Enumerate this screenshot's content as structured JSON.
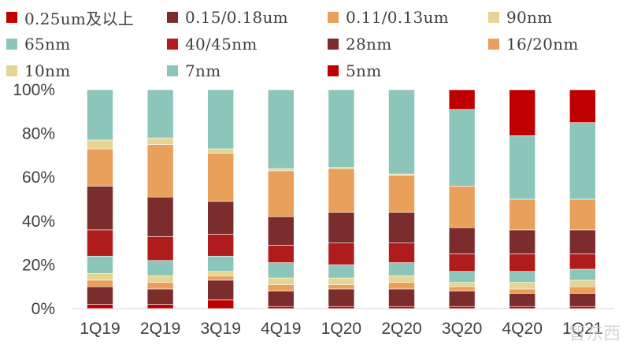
{
  "chart_data": {
    "type": "bar",
    "stacked": true,
    "categories": [
      "1Q19",
      "2Q19",
      "3Q19",
      "4Q19",
      "1Q20",
      "2Q20",
      "3Q20",
      "4Q20",
      "1Q21"
    ],
    "ylim": [
      0,
      100
    ],
    "yticks": [
      "0%",
      "20%",
      "40%",
      "60%",
      "80%",
      "100%"
    ],
    "ytick_values": [
      0,
      20,
      40,
      60,
      80,
      100
    ],
    "legend_position": "top",
    "series": [
      {
        "name": "0.25um及以上",
        "color": "#C00000",
        "values": [
          2,
          2,
          4,
          1,
          1,
          1,
          1,
          1,
          1
        ]
      },
      {
        "name": "0.15/0.18um",
        "color": "#7B2C2C",
        "values": [
          8,
          7,
          9,
          7,
          8,
          8,
          7,
          6,
          6
        ]
      },
      {
        "name": "0.11/0.13um",
        "color": "#E8A05A",
        "values": [
          3,
          3,
          2,
          3,
          2,
          3,
          2,
          2,
          3
        ]
      },
      {
        "name": "90nm",
        "color": "#E6D591",
        "values": [
          3,
          3,
          2,
          3,
          3,
          3,
          2,
          3,
          3
        ]
      },
      {
        "name": "65nm",
        "color": "#8CC5B9",
        "values": [
          8,
          7,
          7,
          7,
          6,
          6,
          5,
          5,
          5
        ]
      },
      {
        "name": "40/45nm",
        "color": "#B01C1C",
        "values": [
          12,
          11,
          10,
          8,
          10,
          9,
          8,
          8,
          7
        ]
      },
      {
        "name": "28nm",
        "color": "#7B2C2C",
        "values": [
          20,
          18,
          15,
          13,
          14,
          14,
          12,
          11,
          11
        ]
      },
      {
        "name": "16/20nm",
        "color": "#E8A05A",
        "values": [
          17,
          24,
          22,
          21,
          20,
          17,
          19,
          14,
          14
        ]
      },
      {
        "name": "10nm",
        "color": "#E6D591",
        "values": [
          4,
          3,
          2,
          1,
          0.5,
          0.5,
          0,
          0,
          0
        ]
      },
      {
        "name": "7nm",
        "color": "#8CC5B9",
        "values": [
          23,
          22,
          27,
          36,
          35.5,
          38.5,
          35,
          29,
          35
        ]
      },
      {
        "name": "5nm",
        "color": "#C00000",
        "values": [
          0,
          0,
          0,
          0,
          0,
          0,
          9,
          21,
          15
        ]
      }
    ]
  },
  "watermark": "智东西"
}
